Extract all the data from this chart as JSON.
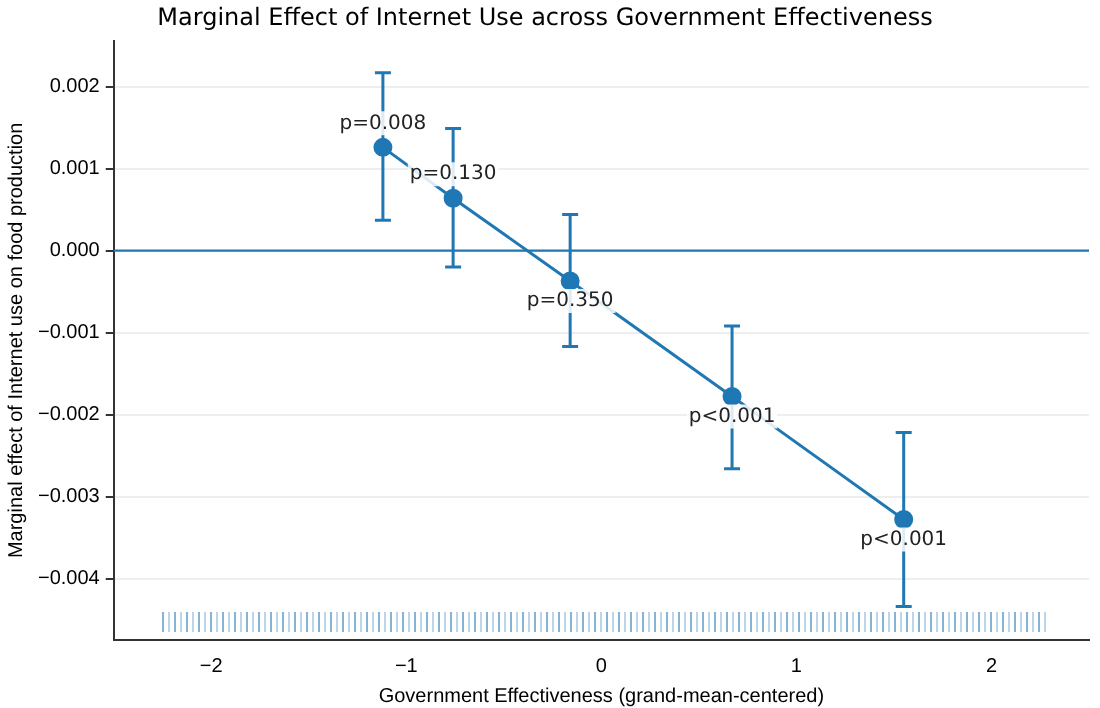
{
  "chart_data": {
    "type": "line",
    "title": "Marginal Effect of Internet Use across Government Effectiveness",
    "xlabel": "Government Effectiveness (grand-mean-centered)",
    "ylabel": "Marginal effect of Internet use on food production",
    "x": [
      -1.12,
      -0.76,
      -0.16,
      0.67,
      1.55
    ],
    "series": [
      {
        "color": "#1f77b4",
        "values": [
          0.00126,
          0.00064,
          -0.00037,
          -0.00178,
          -0.00328
        ],
        "errors": [
          [
            0.00037,
            0.00217
          ],
          [
            -0.0002,
            0.00149
          ],
          [
            -0.00117,
            0.00044
          ],
          [
            -0.00266,
            -0.00092
          ],
          [
            -0.00434,
            -0.00222
          ]
        ]
      }
    ],
    "xlim": [
      -2.5,
      2.5
    ],
    "xticks": [
      -2,
      -1,
      0,
      1,
      2
    ],
    "ylim": [
      -0.00475,
      0.00256
    ],
    "yticks": [
      {
        "value": -0.004,
        "label": "−0.004"
      },
      {
        "value": -0.003,
        "label": "−0.003"
      },
      {
        "value": -0.002,
        "label": "−0.002"
      },
      {
        "value": -0.001,
        "label": "−0.001"
      },
      {
        "value": 0,
        "label": "0.000"
      },
      {
        "value": 0.001,
        "label": "0.001"
      },
      {
        "value": 0.002,
        "label": "0.002"
      }
    ],
    "ref_lines": [
      {
        "axis": "y",
        "value": 0,
        "color": "#1f77b4"
      }
    ],
    "annotations": [
      {
        "text": "p=0.008",
        "x": -1.12,
        "y": 0.00126
      },
      {
        "text": "p=0.130",
        "x": -0.76,
        "y": 0.00064
      },
      {
        "text": "p=0.350",
        "x": -0.16,
        "y": -0.00037
      },
      {
        "text": "p<0.001",
        "x": 0.67,
        "y": -0.00178
      },
      {
        "text": "p<0.001",
        "x": 1.55,
        "y": -0.00328
      }
    ],
    "grid": "y",
    "legend": false,
    "marker": "circle",
    "line_style": "solid"
  }
}
